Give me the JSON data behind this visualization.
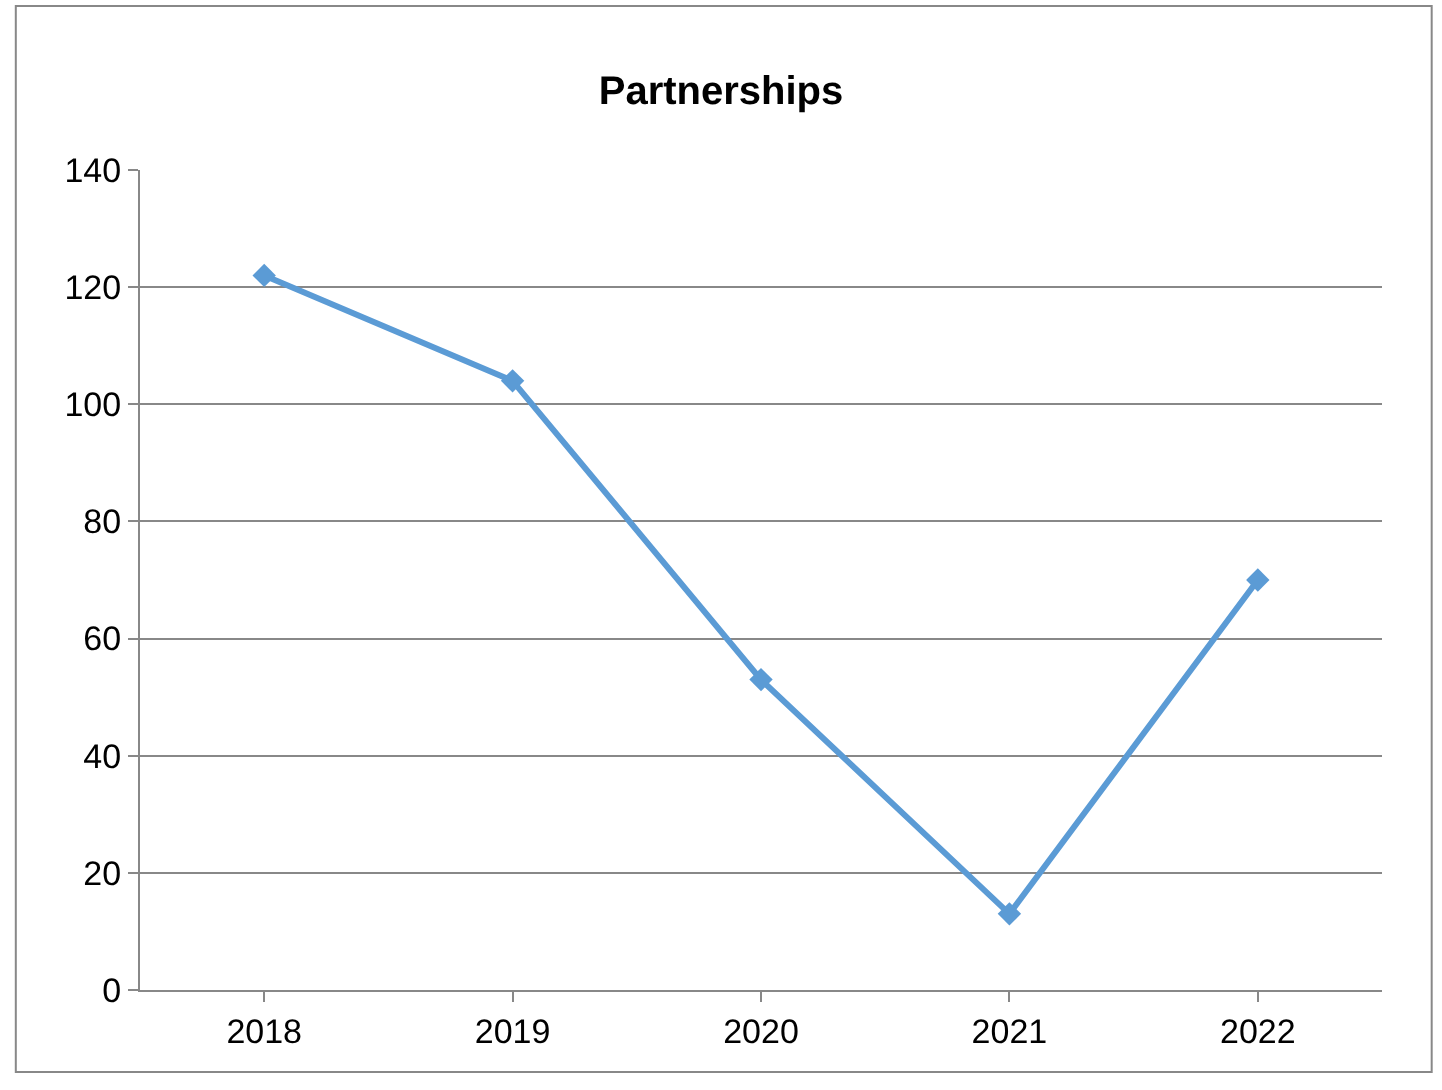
{
  "chart_data": {
    "type": "line",
    "title": "Partnerships",
    "categories": [
      "2018",
      "2019",
      "2020",
      "2021",
      "2022"
    ],
    "series": [
      {
        "color": "#5b9bd5",
        "values": [
          122,
          104,
          53,
          13,
          70
        ]
      }
    ],
    "ylim": [
      0,
      140
    ],
    "yticks": [
      0,
      20,
      40,
      60,
      80,
      100,
      120,
      140
    ],
    "grid": "y",
    "marker": "diamond",
    "line_style": "solid"
  }
}
